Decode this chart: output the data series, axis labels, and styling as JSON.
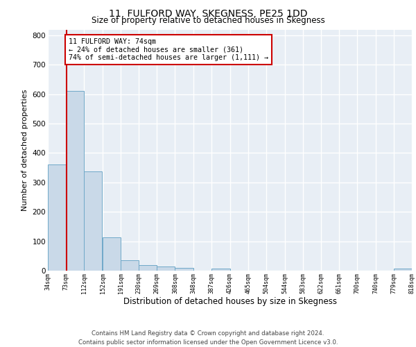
{
  "title_line1": "11, FULFORD WAY, SKEGNESS, PE25 1DD",
  "title_line2": "Size of property relative to detached houses in Skegness",
  "xlabel": "Distribution of detached houses by size in Skegness",
  "ylabel": "Number of detached properties",
  "footnote": "Contains HM Land Registry data © Crown copyright and database right 2024.\nContains public sector information licensed under the Open Government Licence v3.0.",
  "bar_edges": [
    34,
    73,
    112,
    152,
    191,
    230,
    269,
    308,
    348,
    387,
    426,
    465,
    504,
    544,
    583,
    622,
    661,
    700,
    740,
    779,
    818
  ],
  "bar_heights": [
    360,
    612,
    338,
    114,
    36,
    20,
    15,
    10,
    0,
    8,
    0,
    0,
    0,
    0,
    0,
    0,
    0,
    0,
    0,
    8
  ],
  "bar_color": "#c9d9e8",
  "bar_edge_color": "#6fa8c8",
  "property_size": 74,
  "property_line_color": "#cc0000",
  "annotation_text": "11 FULFORD WAY: 74sqm\n← 24% of detached houses are smaller (361)\n74% of semi-detached houses are larger (1,111) →",
  "annotation_box_color": "#cc0000",
  "ylim": [
    0,
    820
  ],
  "yticks": [
    0,
    100,
    200,
    300,
    400,
    500,
    600,
    700,
    800
  ],
  "bg_color": "#e8eef5",
  "grid_color": "#ffffff",
  "tick_labels": [
    "34sqm",
    "73sqm",
    "112sqm",
    "152sqm",
    "191sqm",
    "230sqm",
    "269sqm",
    "308sqm",
    "348sqm",
    "387sqm",
    "426sqm",
    "465sqm",
    "504sqm",
    "544sqm",
    "583sqm",
    "622sqm",
    "661sqm",
    "700sqm",
    "740sqm",
    "779sqm",
    "818sqm"
  ]
}
